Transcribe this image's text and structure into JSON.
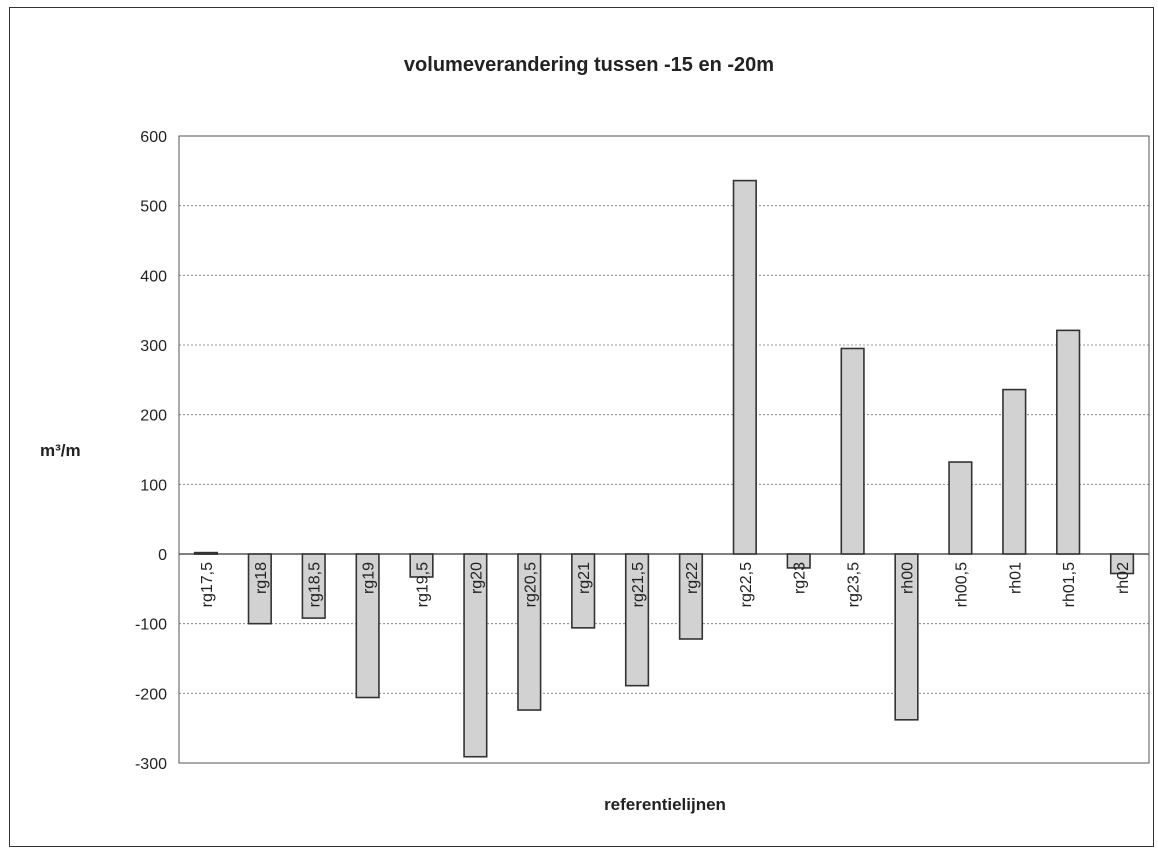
{
  "chart_data": {
    "type": "bar",
    "title": "volumeverandering tussen -15 en -20m",
    "xlabel": "referentielijnen",
    "ylabel": "m³/m",
    "ylim": [
      -300,
      600
    ],
    "yticks": [
      600,
      500,
      400,
      300,
      200,
      100,
      0,
      -100,
      -200,
      -300
    ],
    "grid": true,
    "legend": "none",
    "categories": [
      "rg17,5",
      "rg18",
      "rg18,5",
      "rg19",
      "rg19,5",
      "rg20",
      "rg20,5",
      "rg21",
      "rg21,5",
      "rg22",
      "rg22,5",
      "rg23",
      "rg23,5",
      "rh00",
      "rh00,5",
      "rh01",
      "rh01,5",
      "rh02"
    ],
    "values": [
      2,
      -100,
      -92,
      -206,
      -33,
      -291,
      -224,
      -106,
      -189,
      -122,
      536,
      -20,
      295,
      -238,
      132,
      236,
      321,
      -28
    ],
    "bar_color": "#d2d2d2",
    "edge_color": "#333333"
  }
}
